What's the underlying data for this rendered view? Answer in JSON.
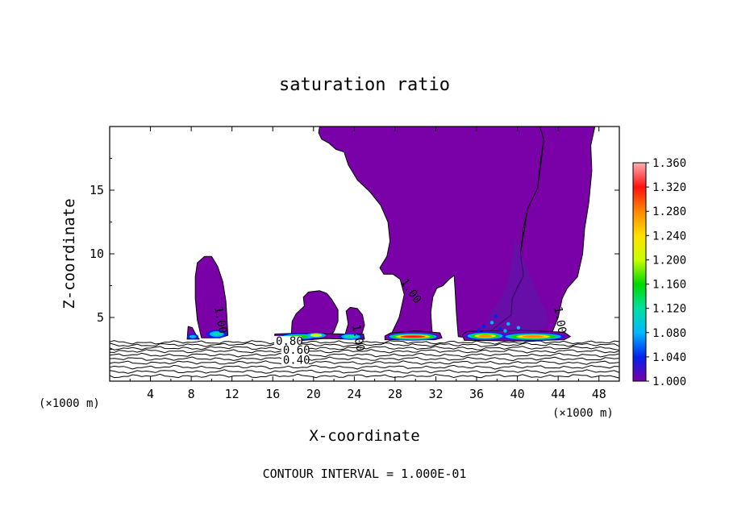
{
  "chart_data": {
    "type": "contour",
    "title": "saturation ratio",
    "xlabel": "X-coordinate",
    "ylabel": "Z-coordinate",
    "x_unit_left": "(×1000 m)",
    "x_unit_right": "(×1000 m)",
    "xlim": [
      0,
      50
    ],
    "ylim": [
      0,
      20
    ],
    "x_ticks": [
      4,
      8,
      12,
      16,
      20,
      24,
      28,
      32,
      36,
      40,
      44,
      48
    ],
    "y_ticks": [
      5,
      10,
      15
    ],
    "footer": "CONTOUR INTERVAL = 1.000E-01",
    "colorbar": {
      "ticks": [
        "1.000",
        "1.040",
        "1.080",
        "1.120",
        "1.160",
        "1.200",
        "1.240",
        "1.280",
        "1.320",
        "1.360"
      ],
      "colors": [
        "#7a00a8",
        "#0022ee",
        "#00b8ff",
        "#00e0a0",
        "#00d800",
        "#c8ff00",
        "#ffe000",
        "#ff8800",
        "#ff1010",
        "#ffb0b0"
      ]
    },
    "contour_labels": [
      {
        "text": "1.00",
        "x": 10.3,
        "z": 5.8
      },
      {
        "text": "1.00",
        "x": 23.8,
        "z": 4.4
      },
      {
        "text": "1.00",
        "x": 28.5,
        "z": 7.8
      },
      {
        "text": "1.00",
        "x": 43.6,
        "z": 5.8
      },
      {
        "text": "0.80",
        "x": 16.3,
        "z": 2.85
      },
      {
        "text": "0.60",
        "x": 17.0,
        "z": 2.15
      },
      {
        "text": "0.40",
        "x": 17.0,
        "z": 1.35
      }
    ]
  }
}
